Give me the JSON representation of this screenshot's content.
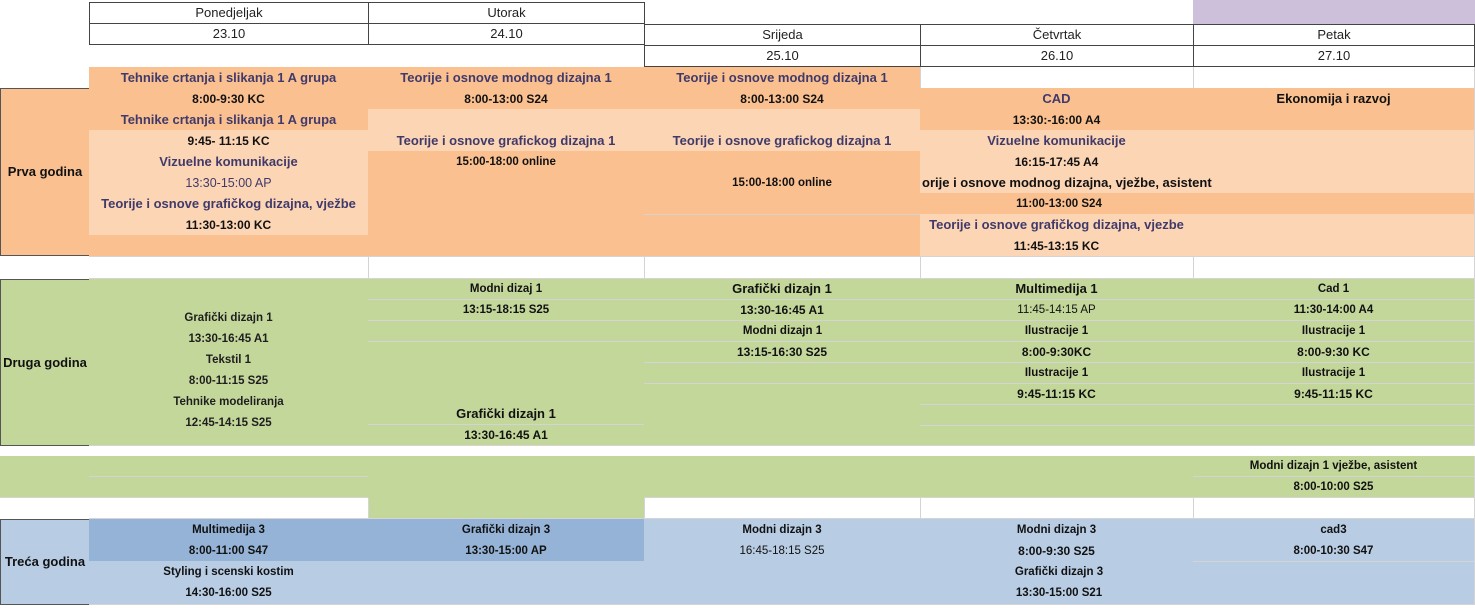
{
  "days": [
    {
      "name": "Ponedjeljak",
      "date": "23.10"
    },
    {
      "name": "Utorak",
      "date": "24.10"
    },
    {
      "name": "Srijeda",
      "date": "25.10"
    },
    {
      "name": "Četvrtak",
      "date": "26.10"
    },
    {
      "name": "Petak",
      "date": "27.10"
    }
  ],
  "years": {
    "first": "Prva godina",
    "second": "Druga godina",
    "third": "Treća godina"
  },
  "y1": {
    "mon": {
      "c1": "Tehnike crtanja i slikanja 1 A grupa",
      "t1": "8:00-9:30 KC",
      "c2": "Tehnike crtanja i slikanja 1 A grupa",
      "t2": "9:45- 11:15 KC",
      "c3": "Vizuelne komunikacije",
      "t3": "13:30-15:00 AP",
      "c4": "Teorije i osnove grafičkog dizajna, vježbe",
      "t4": "11:30-13:00 KC"
    },
    "tue": {
      "c1": "Teorije i osnove modnog dizajna 1",
      "t1": "8:00-13:00 S24",
      "c2": "Teorije i osnove grafickog dizajna 1",
      "t2": "15:00-18:00 online"
    },
    "wed": {
      "c1": "Teorije i osnove modnog dizajna 1",
      "t1": "8:00-13:00 S24",
      "c2": "Teorije i osnove grafickog dizajna 1",
      "t2": "15:00-18:00 online"
    },
    "thu": {
      "c1": "CAD",
      "t1": "13:30:-16:00 A4",
      "c2": "Vizuelne komunikacije",
      "t2": "16:15-17:45 A4",
      "c3": "orije i osnove modnog dizajna, vježbe, asistent",
      "t3": "11:00-13:00 S24",
      "c4": "Teorije i osnove grafičkog dizajna, vjezbe",
      "t4": "11:45-13:15 KC"
    },
    "fri": {
      "c1": "Ekonomija i razvoj"
    }
  },
  "y2": {
    "mon": [
      "Grafički dizajn 1",
      "13:30-16:45 A1",
      "Tekstil 1",
      "8:00-11:15 S25",
      "Tehnike modeliranja",
      "12:45-14:15 S25"
    ],
    "tue": {
      "c1": "Modni dizaj 1",
      "t1": "13:15-18:15 S25",
      "c2": "Grafički dizajn 1",
      "t2": "13:30-16:45 A1"
    },
    "wed": {
      "c1": "Grafički dizajn 1",
      "t1": "13:30-16:45 A1",
      "c2": "Modni dizajn 1",
      "t2": "13:15-16:30 S25"
    },
    "thu": {
      "c1": "Multimedija 1",
      "t1": "11:45-14:15 AP",
      "c2": "Ilustracije 1",
      "t2": "8:00-9:30KC",
      "c3": "Ilustracije 1",
      "t3": "9:45-11:15 KC"
    },
    "fri": {
      "c1": "Cad 1",
      "t1": "11:30-14:00 A4",
      "c2": "Ilustracije 1",
      "t2": "8:00-9:30 KC",
      "c3": "Ilustracije 1",
      "t3": "9:45-11:15 KC",
      "c4": "Modni dizajn 1 vježbe, asistent",
      "t4": "8:00-10:00 S25"
    }
  },
  "y3": {
    "mon": {
      "c1": "Multimedija 3",
      "t1": "8:00-11:00 S47",
      "c2": "Styling i scenski kostim",
      "t2": "14:30-16:00 S25"
    },
    "tue": {
      "c1": "Grafički dizajn 3",
      "t1": "13:30-15:00 AP"
    },
    "wed": {
      "c1": "Modni dizajn 3",
      "t1": "16:45-18:15 S25"
    },
    "thu": {
      "c1": "Modni dizajn 3",
      "t1": "8:00-9:30 S25",
      "c2": "Grafički dizajn 3",
      "t2": "13:30-15:00 S21"
    },
    "fri": {
      "c1": "cad3",
      "t1": "8:00-10:30 S47"
    }
  },
  "colors": {
    "orange": "#fac090",
    "light_orange": "#fcd5b4",
    "green": "#c4d79b",
    "blue": "#95b3d7",
    "light_blue": "#b8cce4",
    "purple": "#ccc0da"
  }
}
